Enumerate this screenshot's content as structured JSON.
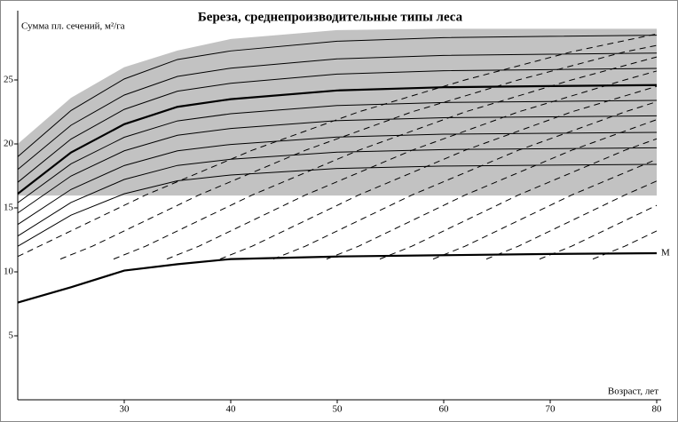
{
  "chart_data": {
    "type": "line",
    "title": "Береза, среднепроизводительные типы леса",
    "y_label": "Сумма пл. сечений, м²/га",
    "x_label": "Возраст, лет",
    "xlim": [
      20,
      80
    ],
    "ylim": [
      0,
      30
    ],
    "xticks": [
      30,
      40,
      50,
      60,
      70,
      80
    ],
    "yticks": [
      5,
      10,
      15,
      20,
      25
    ],
    "grid": false,
    "band": {
      "x": [
        20,
        25,
        30,
        35,
        40,
        50,
        60,
        80
      ],
      "upper": [
        20,
        23.6,
        26,
        27.3,
        28.2,
        28.9,
        29,
        29
      ],
      "lower": [
        16,
        16,
        16,
        16,
        16,
        16,
        16,
        16
      ],
      "color": "#c2c2c2"
    },
    "series": [
      {
        "style": "solid",
        "color": "#000000",
        "x": [
          20,
          25,
          30,
          35,
          40,
          50,
          60,
          70,
          80
        ],
        "values": [
          12,
          14.43,
          16.1,
          17.12,
          17.57,
          18.08,
          18.27,
          18.34,
          18.4
        ]
      },
      {
        "style": "solid",
        "color": "#000000",
        "x": [
          20,
          25,
          30,
          35,
          40,
          50,
          60,
          70,
          80
        ],
        "values": [
          12.8,
          15.42,
          17.22,
          18.32,
          18.8,
          19.36,
          19.56,
          19.63,
          19.7
        ]
      },
      {
        "style": "solid",
        "color": "#000000",
        "x": [
          20,
          25,
          30,
          35,
          40,
          50,
          60,
          70,
          80
        ],
        "values": [
          13.7,
          16.44,
          18.31,
          19.46,
          19.96,
          20.54,
          20.76,
          20.83,
          20.9
        ]
      },
      {
        "style": "solid",
        "color": "#000000",
        "x": [
          20,
          25,
          30,
          35,
          40,
          50,
          60,
          70,
          80
        ],
        "values": [
          14.6,
          17.49,
          19.46,
          20.68,
          21.21,
          21.82,
          22.05,
          22.12,
          22.2
        ]
      },
      {
        "style": "solid",
        "color": "#000000",
        "x": [
          20,
          25,
          30,
          35,
          40,
          50,
          60,
          70,
          80
        ],
        "values": [
          15.4,
          18.44,
          20.52,
          21.8,
          22.36,
          23,
          23.24,
          23.32,
          23.4
        ]
      },
      {
        "style": "bold",
        "color": "#000000",
        "x": [
          20,
          25,
          30,
          35,
          40,
          50,
          60,
          70,
          80
        ],
        "values": [
          16.1,
          19.33,
          21.54,
          22.9,
          23.5,
          24.18,
          24.43,
          24.52,
          24.6
        ]
      },
      {
        "style": "solid",
        "color": "#000000",
        "x": [
          20,
          25,
          30,
          35,
          40,
          50,
          60,
          70,
          80
        ],
        "values": [
          17,
          20.38,
          22.7,
          24.12,
          24.74,
          25.46,
          25.72,
          25.81,
          25.9
        ]
      },
      {
        "style": "solid",
        "color": "#000000",
        "x": [
          20,
          25,
          30,
          35,
          40,
          50,
          60,
          70,
          80
        ],
        "values": [
          18,
          21.46,
          23.82,
          25.28,
          25.92,
          26.65,
          26.92,
          27.01,
          27.1
        ]
      },
      {
        "style": "solid",
        "color": "#000000",
        "x": [
          20,
          25,
          30,
          35,
          40,
          50,
          60,
          70,
          80
        ],
        "values": [
          19,
          22.61,
          25.08,
          26.6,
          27.27,
          28.03,
          28.31,
          28.41,
          28.5
        ]
      },
      {
        "style": "dashed",
        "color": "#000000",
        "x": [
          20,
          22,
          32,
          42,
          52,
          62,
          72,
          80
        ],
        "values": [
          11.2,
          12,
          16,
          19.5,
          22.5,
          25,
          27.2,
          28.6
        ]
      },
      {
        "style": "dashed",
        "color": "#000000",
        "x": [
          24,
          27,
          37,
          47,
          57,
          67,
          77,
          80
        ],
        "values": [
          11,
          12,
          16,
          19.5,
          22.5,
          25,
          27.2,
          27.7
        ]
      },
      {
        "style": "dashed",
        "color": "#000000",
        "x": [
          29,
          32,
          42,
          52,
          62,
          72,
          80
        ],
        "values": [
          11,
          12,
          16,
          19.5,
          22.5,
          25,
          26.8
        ]
      },
      {
        "style": "dashed",
        "color": "#000000",
        "x": [
          34,
          37,
          47,
          57,
          67,
          77,
          80
        ],
        "values": [
          11,
          12,
          16,
          19.5,
          22.5,
          25,
          25.7
        ]
      },
      {
        "style": "dashed",
        "color": "#000000",
        "x": [
          39,
          42,
          52,
          62,
          72,
          80
        ],
        "values": [
          11,
          12,
          16,
          19.5,
          22.5,
          24.5
        ]
      },
      {
        "style": "dashed",
        "color": "#000000",
        "x": [
          44,
          47,
          57,
          67,
          77,
          80
        ],
        "values": [
          11,
          12,
          16,
          19.5,
          22.5,
          23.3
        ]
      },
      {
        "style": "dashed",
        "color": "#000000",
        "x": [
          49,
          52,
          62,
          72,
          80
        ],
        "values": [
          11,
          12,
          16,
          19.5,
          21.9
        ]
      },
      {
        "style": "dashed",
        "color": "#000000",
        "x": [
          54,
          57,
          67,
          77,
          80
        ],
        "values": [
          11,
          12,
          16,
          19.5,
          20.4
        ]
      },
      {
        "style": "dashed",
        "color": "#000000",
        "x": [
          59,
          62,
          72,
          80
        ],
        "values": [
          11,
          12,
          16,
          18.8
        ]
      },
      {
        "style": "dashed",
        "color": "#000000",
        "x": [
          64,
          67,
          77,
          80
        ],
        "values": [
          11,
          12,
          16,
          17.1
        ]
      },
      {
        "style": "dashed",
        "color": "#000000",
        "x": [
          69,
          72,
          80
        ],
        "values": [
          11,
          12,
          15.2
        ]
      },
      {
        "style": "dashed",
        "color": "#000000",
        "x": [
          74,
          77,
          80
        ],
        "values": [
          11,
          12,
          13.2
        ]
      },
      {
        "name": "M",
        "style": "bold",
        "color": "#000000",
        "x": [
          20,
          25,
          30,
          35,
          40,
          50,
          60,
          70,
          80
        ],
        "values": [
          7.6,
          8.8,
          10.1,
          10.6,
          11,
          11.2,
          11.3,
          11.4,
          11.46
        ]
      }
    ]
  }
}
